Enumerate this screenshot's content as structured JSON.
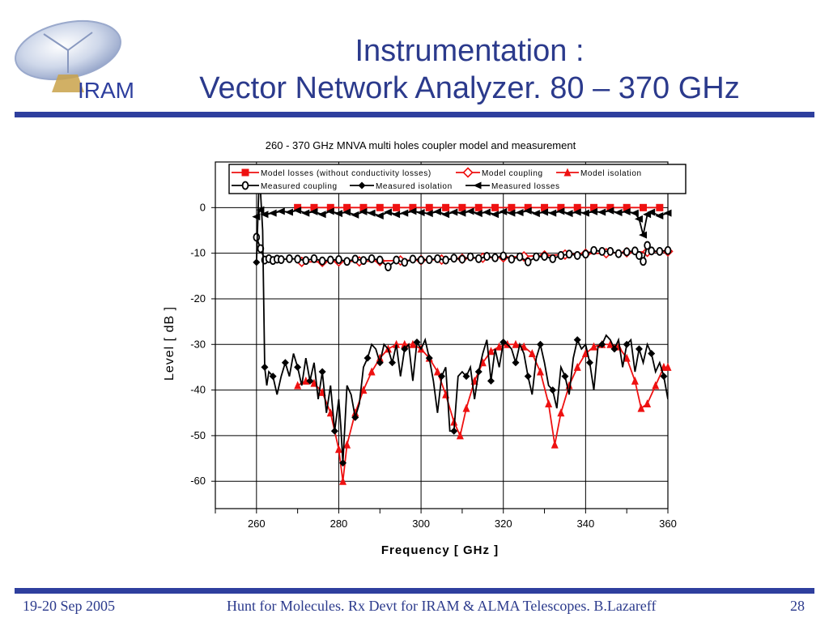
{
  "header": {
    "logo_text": "IRAM",
    "title_line1": "Instrumentation :",
    "title_line2": "Vector Network Analyzer. 80 – 370 GHz"
  },
  "footer": {
    "date": "19-20 Sep 2005",
    "text": "Hunt for Molecules. Rx Devt for IRAM & ALMA Telescopes. B.Lazareff",
    "page": "28"
  },
  "colors": {
    "brand": "#2e3f9e",
    "title": "#2b3a8c",
    "model": "#ee1111",
    "measured": "#000000"
  },
  "chart_data": {
    "type": "line",
    "title": "260 - 370 GHz MNVA multi holes coupler model and measurement",
    "xlabel": "Frequency [ GHz ]",
    "ylabel": "Level [ dB ]",
    "xlim": [
      250,
      360
    ],
    "ylim": [
      -66,
      10
    ],
    "xticks": [
      260,
      280,
      300,
      320,
      340,
      360
    ],
    "yticks": [
      0,
      -10,
      -20,
      -30,
      -40,
      -50,
      -60
    ],
    "grid": true,
    "legend_position": "top",
    "series": [
      {
        "name": "Model losses (without conductivity losses)",
        "color": "#ee1111",
        "marker": "square",
        "dashed": false,
        "x": [
          270,
          274,
          278,
          282,
          286,
          290,
          294,
          298,
          302,
          306,
          310,
          314,
          318,
          322,
          326,
          330,
          334,
          338,
          342,
          346,
          350,
          354,
          358
        ],
        "y": [
          0,
          0,
          0,
          0,
          0,
          0,
          0,
          0,
          0,
          0,
          0,
          0,
          0,
          0,
          0,
          0,
          0,
          0,
          0,
          0,
          0,
          0,
          0
        ]
      },
      {
        "name": "Model coupling",
        "color": "#ee1111",
        "marker": "diamond",
        "dashed": false,
        "x": [
          271,
          276,
          280,
          285,
          290,
          295,
          300,
          305,
          310,
          315,
          320,
          325,
          330,
          335,
          340,
          345,
          350,
          355,
          360
        ],
        "y": [
          -11.9,
          -11.9,
          -11.8,
          -11.8,
          -11.7,
          -11.6,
          -11.5,
          -11.4,
          -11.2,
          -11.0,
          -10.9,
          -10.7,
          -10.5,
          -10.3,
          -10.1,
          -10.0,
          -9.8,
          -9.7,
          -9.6
        ]
      },
      {
        "name": "Model isolation",
        "color": "#ee1111",
        "marker": "triangle",
        "dashed": false,
        "x": [
          270,
          272,
          274,
          276,
          278,
          280,
          281,
          282,
          284,
          286,
          288,
          290,
          292,
          294,
          296,
          298,
          300,
          302,
          304,
          306,
          308,
          309.5,
          311,
          313,
          315,
          317,
          319,
          321,
          323,
          325,
          327,
          329,
          331,
          332.5,
          334,
          336,
          338,
          340,
          342,
          344,
          346,
          348,
          350,
          352,
          353.5,
          355,
          357,
          359,
          360
        ],
        "y": [
          -39,
          -38,
          -38.5,
          -40.5,
          -45,
          -53,
          -60,
          -52,
          -45,
          -40,
          -36,
          -33,
          -31,
          -30,
          -30,
          -30,
          -31,
          -33,
          -36,
          -41,
          -47,
          -50,
          -44,
          -38,
          -34,
          -31.5,
          -30.5,
          -30,
          -30,
          -30.5,
          -32,
          -36,
          -43,
          -52,
          -45,
          -39,
          -35,
          -32,
          -30.5,
          -30,
          -30,
          -30.5,
          -33,
          -38,
          -44,
          -43,
          -39,
          -35,
          -35
        ]
      },
      {
        "name": "Measured coupling",
        "color": "#000000",
        "marker": "circle-open",
        "dashed": false,
        "x": [
          260,
          261,
          262,
          263,
          264,
          265,
          266,
          268,
          270,
          272,
          274,
          276,
          278,
          280,
          282,
          284,
          286,
          288,
          290,
          292,
          294,
          296,
          298,
          300,
          302,
          304,
          306,
          308,
          310,
          312,
          314,
          316,
          318,
          320,
          322,
          324,
          326,
          328,
          330,
          332,
          334,
          336,
          338,
          340,
          342,
          344,
          346,
          348,
          350,
          352,
          353,
          354,
          355,
          356,
          358,
          360
        ],
        "y": [
          -6.5,
          -9,
          -11.5,
          -11.2,
          -11.6,
          -11.3,
          -11.4,
          -11.2,
          -11.3,
          -11.6,
          -11.2,
          -11.7,
          -11.5,
          -11.4,
          -11.8,
          -11.3,
          -11.6,
          -11.2,
          -11.5,
          -13,
          -11.5,
          -12,
          -11.3,
          -11.5,
          -11.4,
          -11.2,
          -11.5,
          -11.1,
          -11.3,
          -10.8,
          -11.2,
          -10.7,
          -11,
          -10.6,
          -11.3,
          -10.8,
          -11.9,
          -10.8,
          -10.7,
          -11.2,
          -10.5,
          -10.2,
          -10.5,
          -10.2,
          -9.4,
          -9.6,
          -9.6,
          -10.1,
          -9.7,
          -9.5,
          -10.5,
          -11.8,
          -8.3,
          -9.5,
          -9.6,
          -9.4
        ]
      },
      {
        "name": "Measured isolation",
        "color": "#000000",
        "marker": "diamond-filled",
        "dashed": false,
        "x": [
          260,
          260.7,
          261.5,
          262,
          262.5,
          263,
          264,
          265,
          266,
          267,
          268,
          269,
          270,
          271,
          272,
          273,
          274,
          275,
          276,
          277,
          278,
          279,
          280,
          280.5,
          281,
          282,
          283,
          284,
          285,
          286,
          287,
          288,
          289,
          290,
          291,
          292,
          293,
          294,
          295,
          296,
          297,
          298,
          299,
          300,
          301,
          302,
          303,
          304,
          305,
          306,
          307,
          308,
          309,
          310,
          311,
          312,
          313,
          314,
          315,
          316,
          317,
          318,
          319,
          320,
          321,
          322,
          323,
          324,
          325,
          326,
          327,
          328,
          329,
          330,
          331,
          332,
          333,
          334,
          335,
          336,
          337,
          338,
          339,
          340,
          341,
          342,
          343,
          344,
          345,
          346,
          347,
          348,
          349,
          350,
          351,
          352,
          353,
          354,
          355,
          356,
          357,
          358,
          359,
          360
        ],
        "y": [
          -12,
          8,
          -5,
          -35,
          -39,
          -36,
          -37,
          -41,
          -37,
          -34,
          -37,
          -32,
          -35,
          -39,
          -33,
          -38,
          -34,
          -42,
          -36,
          -45,
          -39,
          -49,
          -42,
          -48,
          -56,
          -39,
          -41,
          -46,
          -43,
          -35,
          -33,
          -30,
          -31,
          -34,
          -30,
          -31,
          -34,
          -30,
          -37,
          -31,
          -30,
          -38,
          -29.5,
          -31,
          -29,
          -33,
          -38,
          -45,
          -37,
          -35,
          -49,
          -49,
          -37,
          -36,
          -37,
          -35,
          -42,
          -36,
          -32,
          -29,
          -38,
          -31,
          -35,
          -29.5,
          -30,
          -31,
          -34,
          -30,
          -32,
          -37,
          -41,
          -33,
          -30,
          -34,
          -39,
          -40,
          -44,
          -35,
          -37,
          -41,
          -33,
          -29,
          -31,
          -30,
          -34,
          -40,
          -30.5,
          -30,
          -28,
          -29,
          -31,
          -29,
          -35,
          -30,
          -29,
          -36,
          -31,
          -34,
          -30,
          -32,
          -36,
          -34,
          -37,
          -42
        ]
      },
      {
        "name": "Measured losses",
        "color": "#000000",
        "marker": "triangle-left",
        "dashed": false,
        "x": [
          260,
          261,
          262,
          264,
          266,
          268,
          270,
          272,
          274,
          276,
          278,
          280,
          282,
          284,
          286,
          288,
          290,
          292,
          294,
          296,
          298,
          300,
          302,
          304,
          306,
          308,
          310,
          312,
          314,
          316,
          318,
          320,
          322,
          324,
          326,
          328,
          330,
          332,
          334,
          336,
          338,
          340,
          342,
          344,
          346,
          348,
          350,
          352,
          353,
          354,
          355,
          356,
          358,
          360
        ],
        "y": [
          -2,
          -0.5,
          -1.5,
          -1.2,
          -0.8,
          -1.0,
          -0.6,
          -1.2,
          -0.9,
          -1.5,
          -0.8,
          -1.3,
          -1.0,
          -1.6,
          -0.9,
          -1.2,
          -1.8,
          -1.0,
          -1.5,
          -1.2,
          -0.8,
          -1.1,
          -1.3,
          -0.9,
          -1.5,
          -1.0,
          -1.2,
          -0.8,
          -1.3,
          -1.0,
          -1.5,
          -0.9,
          -1.2,
          -1.1,
          -0.7,
          -1.3,
          -1.0,
          -1.2,
          -0.8,
          -1.3,
          -1.0,
          -1.2,
          -0.9,
          -1.0,
          -0.7,
          -1.1,
          -0.9,
          -1.2,
          -2.5,
          -6,
          -1.5,
          -1.0,
          -1.8,
          -1.2
        ]
      }
    ]
  }
}
